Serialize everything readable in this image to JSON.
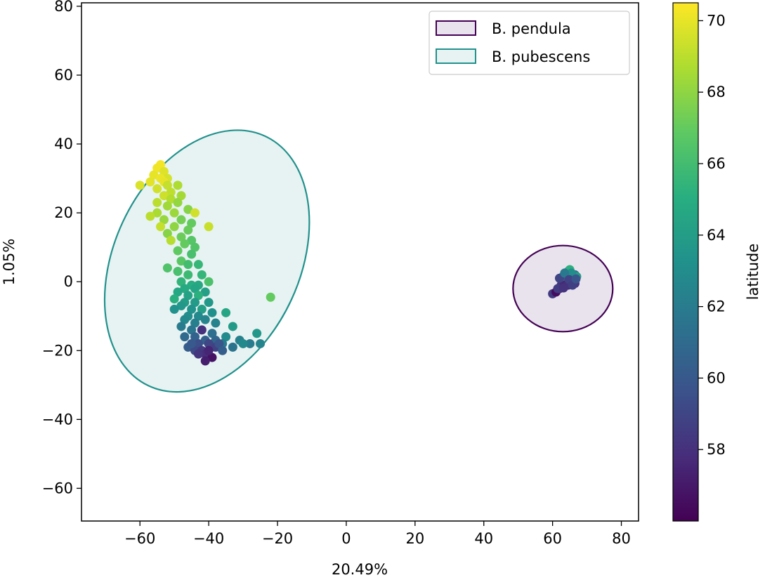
{
  "chart_data": {
    "type": "scatter",
    "xlabel": "20.49%",
    "ylabel": "1.05%",
    "xlim": [
      -77,
      85
    ],
    "ylim": [
      -69.5,
      81
    ],
    "x_ticks": [
      "−60",
      "−40",
      "−20",
      "0",
      "20",
      "40",
      "60",
      "80"
    ],
    "y_ticks": [
      "−60",
      "−40",
      "−20",
      "0",
      "20",
      "40",
      "60",
      "80"
    ],
    "legend_position": "upper right",
    "legend": [
      {
        "name": "B. pendula",
        "edge_color": "#440154",
        "fill_color": "#e9e3ee"
      },
      {
        "name": "B. pubescens",
        "edge_color": "#21918c",
        "fill_color": "#e7f3f2"
      }
    ],
    "ellipses": [
      {
        "name": "B. pubescens",
        "center": [
          -40.5,
          6
        ],
        "semi_axes": [
          27,
          40
        ],
        "angle_deg": 25
      },
      {
        "name": "B. pendula",
        "center": [
          63,
          -2
        ],
        "semi_axes": [
          14.5,
          12.5
        ],
        "angle_deg": 0
      }
    ],
    "colorbar": {
      "label": "latitude",
      "colormap": "viridis",
      "range": [
        56.0,
        70.5
      ],
      "ticks": [
        "58",
        "60",
        "62",
        "64",
        "66",
        "68",
        "70"
      ]
    },
    "series": [
      {
        "name": "B. pubescens",
        "points": [
          [
            -54,
            34,
            70.3
          ],
          [
            -55,
            33,
            70.2
          ],
          [
            -53,
            32,
            69.8
          ],
          [
            -56,
            31,
            70
          ],
          [
            -52,
            30,
            69.6
          ],
          [
            -54,
            30,
            70.1
          ],
          [
            -53,
            29,
            70
          ],
          [
            -57,
            29,
            69.9
          ],
          [
            -60,
            28,
            69.7
          ],
          [
            -52,
            28,
            69.2
          ],
          [
            -49,
            28,
            68.7
          ],
          [
            -55,
            27,
            69.5
          ],
          [
            -51,
            26,
            69.1
          ],
          [
            -53,
            25,
            69.4
          ],
          [
            -48,
            25,
            68.5
          ],
          [
            -51,
            24,
            68.8
          ],
          [
            -55,
            23,
            69
          ],
          [
            -49,
            23,
            68.1
          ],
          [
            -52,
            22,
            68.4
          ],
          [
            -46,
            21,
            67.8
          ],
          [
            -55,
            20,
            68.6
          ],
          [
            -50,
            20,
            68.3
          ],
          [
            -44,
            20,
            69.5
          ],
          [
            -57,
            19,
            69
          ],
          [
            -53,
            18,
            68.2
          ],
          [
            -48,
            18,
            67.4
          ],
          [
            -45,
            17,
            67
          ],
          [
            -54,
            16,
            69.2
          ],
          [
            -50,
            16,
            68
          ],
          [
            -46,
            15,
            67.1
          ],
          [
            -40,
            16,
            69.3
          ],
          [
            -52,
            14,
            67.8
          ],
          [
            -48,
            13,
            67.2
          ],
          [
            -45,
            12,
            66.6
          ],
          [
            -51,
            12,
            68.9
          ],
          [
            -47,
            11,
            67
          ],
          [
            -44,
            10,
            66.5
          ],
          [
            -49,
            9,
            66.9
          ],
          [
            -45,
            8,
            66.2
          ],
          [
            -48,
            6,
            66.7
          ],
          [
            -46,
            5,
            66
          ],
          [
            -43,
            5,
            65.6
          ],
          [
            -52,
            4,
            66.4
          ],
          [
            -49,
            3,
            66.2
          ],
          [
            -46,
            2,
            65.8
          ],
          [
            -42,
            2,
            65.5
          ],
          [
            -48,
            0,
            65.4
          ],
          [
            -45,
            -1,
            65
          ],
          [
            -43,
            -1,
            64.7
          ],
          [
            -40,
            0,
            66.3
          ],
          [
            -47,
            -2,
            64.8
          ],
          [
            -44,
            -2,
            64.5
          ],
          [
            -49,
            -3,
            64.6
          ],
          [
            -41,
            -3,
            64.2
          ],
          [
            -46,
            -4,
            64.3
          ],
          [
            -43,
            -4,
            65.2
          ],
          [
            -50,
            -5,
            65.1
          ],
          [
            -47,
            -6,
            64
          ],
          [
            -44,
            -6,
            63.9
          ],
          [
            -40,
            -6,
            63.7
          ],
          [
            -48,
            -7,
            63.6
          ],
          [
            -45,
            -8,
            63.4
          ],
          [
            -42,
            -8,
            64.1
          ],
          [
            -50,
            -8,
            63.3
          ],
          [
            -39,
            -9,
            63.2
          ],
          [
            -46,
            -10,
            63
          ],
          [
            -43,
            -10,
            62.8
          ],
          [
            -35,
            -9,
            64.5
          ],
          [
            -47,
            -11,
            62.7
          ],
          [
            -41,
            -11,
            62.5
          ],
          [
            -38,
            -12,
            62.4
          ],
          [
            -44,
            -12,
            62.2
          ],
          [
            -48,
            -13,
            62
          ],
          [
            -33,
            -13,
            63.8
          ],
          [
            -45,
            -14,
            61.6
          ],
          [
            -42,
            -14,
            58
          ],
          [
            -39,
            -15,
            61.2
          ],
          [
            -47,
            -16,
            61
          ],
          [
            -44,
            -16,
            60.6
          ],
          [
            -41,
            -17,
            60.4
          ],
          [
            -38,
            -17,
            60.8
          ],
          [
            -35,
            -16,
            62.9
          ],
          [
            -26,
            -15,
            63.6
          ],
          [
            -31,
            -17,
            62.3
          ],
          [
            -28,
            -18,
            62
          ],
          [
            -25,
            -18,
            62.5
          ],
          [
            -30,
            -18,
            62.8
          ],
          [
            -36,
            -18,
            61.8
          ],
          [
            -33,
            -19,
            61.5
          ],
          [
            -43,
            -18,
            59.5
          ],
          [
            -40,
            -18,
            59
          ],
          [
            -46,
            -19,
            60.2
          ],
          [
            -44,
            -20,
            59.2
          ],
          [
            -42,
            -20,
            58.5
          ],
          [
            -38,
            -19,
            58.8
          ],
          [
            -41,
            -21,
            57.8
          ],
          [
            -39,
            -22,
            56.7
          ],
          [
            -41,
            -23,
            57.2
          ],
          [
            -43,
            -21,
            58.2
          ],
          [
            -40,
            -20,
            57.5
          ],
          [
            -22,
            -4.5,
            67
          ],
          [
            -37,
            -18,
            59.8
          ],
          [
            -45,
            -18,
            60
          ],
          [
            -36,
            -20,
            60.3
          ]
        ]
      },
      {
        "name": "B. pendula",
        "points": [
          [
            60,
            -3.5,
            58.5
          ],
          [
            61,
            -3,
            56.5
          ],
          [
            62,
            -2,
            57.8
          ],
          [
            62.5,
            -1,
            58.3
          ],
          [
            63,
            0,
            58.1
          ],
          [
            63.5,
            1,
            58.6
          ],
          [
            64,
            2,
            62.5
          ],
          [
            64.5,
            3,
            64.5
          ],
          [
            65,
            3.5,
            65.2
          ],
          [
            64,
            1.5,
            59.5
          ],
          [
            65,
            1,
            58.8
          ],
          [
            65.5,
            0,
            58
          ],
          [
            66,
            1,
            60.2
          ],
          [
            66.5,
            2,
            61
          ],
          [
            64,
            0,
            58.4
          ],
          [
            63.5,
            -0.5,
            57.6
          ],
          [
            65,
            -0.5,
            57.3
          ],
          [
            66,
            0,
            59.1
          ],
          [
            66.5,
            -0.5,
            58.2
          ],
          [
            64.5,
            -1,
            57.9
          ],
          [
            63,
            1.5,
            60.5
          ],
          [
            62,
            1,
            59
          ],
          [
            61.5,
            -2,
            58.6
          ],
          [
            67,
            1.5,
            64
          ],
          [
            65.5,
            2.5,
            63
          ],
          [
            63.5,
            2.5,
            61.8
          ],
          [
            64.8,
            0.6,
            58.9
          ],
          [
            65.8,
            -1,
            58.7
          ],
          [
            63.2,
            -1.8,
            58.1
          ],
          [
            66.8,
            0.8,
            59.8
          ]
        ]
      }
    ]
  }
}
